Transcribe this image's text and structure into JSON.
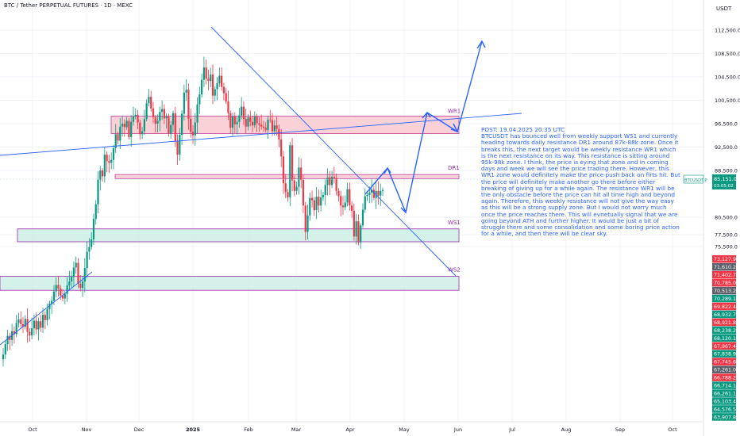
{
  "header": {
    "symbol_title": "BTC / Tether PERPETUAL FUTURES · 1D · MEXC",
    "currency": "USDT"
  },
  "colors": {
    "bull": "#089981",
    "bear": "#f23645",
    "annotation": "#2962ff",
    "zone_pink_fill": "#f8c9d0",
    "zone_pink_border": "#c23fa0",
    "zone_green_fill": "#cdeee6",
    "zone_label": "#9c27b0"
  },
  "note": {
    "heading": "POST: 19.04.2025 20:35 UTC",
    "body": "BTCUSDT has bounced well from weekly support WS1 and currently heading towards daily resistance DR1 around 87k-88k zone. Once it breaks this, the next target would be weekly resistance WR1 which is the next resistance on its way. This resistance is sitting around 95k-98k zone. I think, the price is eying that zone and in coming days and week we will see the price trading there. However, this WR1 zone would definitely make the price push back on firts hit. But the price will definitely make another go there before either breaking of giving up for a while again. The resistance WR1 will be the only obstacle before the price can hit all time high and beyond again. Therefore, this weekly resistance will not give the way easy as this will be a strong supply zone. But I would not worry much once the price reaches there. This will evnetually signal that we are going beyond ATH and further higher. It would be just a bit of struggle there and some consolidation and some boring price action for a while, and then there will be clear sky."
  },
  "chart_data": {
    "type": "candlestick",
    "interval": "1D",
    "y_axis_ticks": [
      112500,
      108500,
      104500,
      100500,
      96500,
      92500,
      88500,
      85151,
      80500,
      77500,
      75500
    ],
    "y_axis_tick_labels": [
      "112,500.0",
      "108,500.0",
      "104,500.0",
      "100,500.0",
      "96,500.0",
      "92,500.0",
      "88,500.0",
      "85,151.0",
      "80,500.0",
      "77,500.0",
      "75,500.0"
    ],
    "x_axis_labels": [
      "Oct",
      "Nov",
      "Dec",
      "2025",
      "Feb",
      "Mar",
      "Apr",
      "May",
      "Jun",
      "Jul",
      "Aug",
      "Sep",
      "Oct"
    ],
    "last_price": {
      "symbol": "BTCUSDT.P",
      "value": "85,151.0",
      "countdown": "03:05:02"
    },
    "scale_badges": [
      {
        "value": "73,127.9",
        "color": "bear"
      },
      {
        "value": "71,610.2",
        "color": "neutral"
      },
      {
        "value": "71,402.7",
        "color": "bear"
      },
      {
        "value": "70,785.0",
        "color": "bear"
      },
      {
        "value": "70,513.2",
        "color": "neutral"
      },
      {
        "value": "70,289.1",
        "color": "bull"
      },
      {
        "value": "69,822.4",
        "color": "bear"
      },
      {
        "value": "68,932.7",
        "color": "bull"
      },
      {
        "value": "68,921.8",
        "color": "bear"
      },
      {
        "value": "68,238.2",
        "color": "bull"
      },
      {
        "value": "68,120.1",
        "color": "bull"
      },
      {
        "value": "67,967.4",
        "color": "bear"
      },
      {
        "value": "67,838.9",
        "color": "bull"
      },
      {
        "value": "67,745.6",
        "color": "bear"
      },
      {
        "value": "67,261.0",
        "color": "neutral"
      },
      {
        "value": "66,788.2",
        "color": "bear"
      },
      {
        "value": "66,714.1",
        "color": "bull"
      },
      {
        "value": "66,261.1",
        "color": "bull"
      },
      {
        "value": "65,103.4",
        "color": "bull"
      },
      {
        "value": "64,576.5",
        "color": "bull"
      },
      {
        "value": "63,907.8",
        "color": "bull"
      }
    ],
    "zones": [
      {
        "name": "WR1",
        "kind": "resistance",
        "top": 97800,
        "bottom": 94800
      },
      {
        "name": "DR1",
        "kind": "resistance",
        "top": 87800,
        "bottom": 87100
      },
      {
        "name": "WS1",
        "kind": "support",
        "top": 78500,
        "bottom": 76300
      },
      {
        "name": "WS2",
        "kind": "support",
        "top": 70400,
        "bottom": 68000
      }
    ],
    "closes": [
      57000,
      58800,
      60200,
      59500,
      61000,
      60500,
      62400,
      63000,
      62200,
      61800,
      63100,
      60900,
      60300,
      61500,
      62800,
      61300,
      62700,
      61600,
      63800,
      62900,
      64800,
      65700,
      66200,
      67800,
      68900,
      68300,
      67100,
      66600,
      67400,
      68800,
      69500,
      70300,
      71900,
      72700,
      69100,
      68400,
      69500,
      71800,
      74600,
      75400,
      76700,
      80200,
      82700,
      86900,
      88500,
      87500,
      91200,
      90100,
      89800,
      90300,
      92300,
      94700,
      93600,
      96000,
      96500,
      95900,
      97000,
      94200,
      96800,
      97700,
      98000,
      96700,
      94700,
      95200,
      97300,
      100000,
      101100,
      99100,
      97600,
      96500,
      97000,
      98500,
      99000,
      97400,
      97700,
      94800,
      96300,
      98300,
      93500,
      91200,
      94600,
      98200,
      101800,
      102300,
      97300,
      95100,
      94500,
      96700,
      99800,
      101500,
      104000,
      106100,
      104200,
      103800,
      104900,
      101300,
      102400,
      103400,
      104700,
      102800,
      101700,
      100300,
      98300,
      95800,
      97700,
      96400,
      96800,
      97900,
      99400,
      97300,
      96000,
      97600,
      96800,
      96200,
      97700,
      96600,
      96300,
      96000,
      95800,
      95400,
      97200,
      97100,
      95200,
      96200,
      95600,
      93800,
      90900,
      86300,
      84800,
      83900,
      92800,
      86800,
      85000,
      85700,
      89000,
      86900,
      82500,
      78000,
      80800,
      83800,
      83400,
      81700,
      84000,
      82500,
      83900,
      84300,
      86000,
      87300,
      86000,
      87400,
      87200,
      85000,
      84100,
      82500,
      82200,
      83000,
      85300,
      82500,
      81600,
      77200,
      79800,
      76200,
      79100,
      81800,
      84100,
      84300,
      84700,
      85200,
      83800,
      85000,
      84200,
      85000,
      85151
    ]
  }
}
